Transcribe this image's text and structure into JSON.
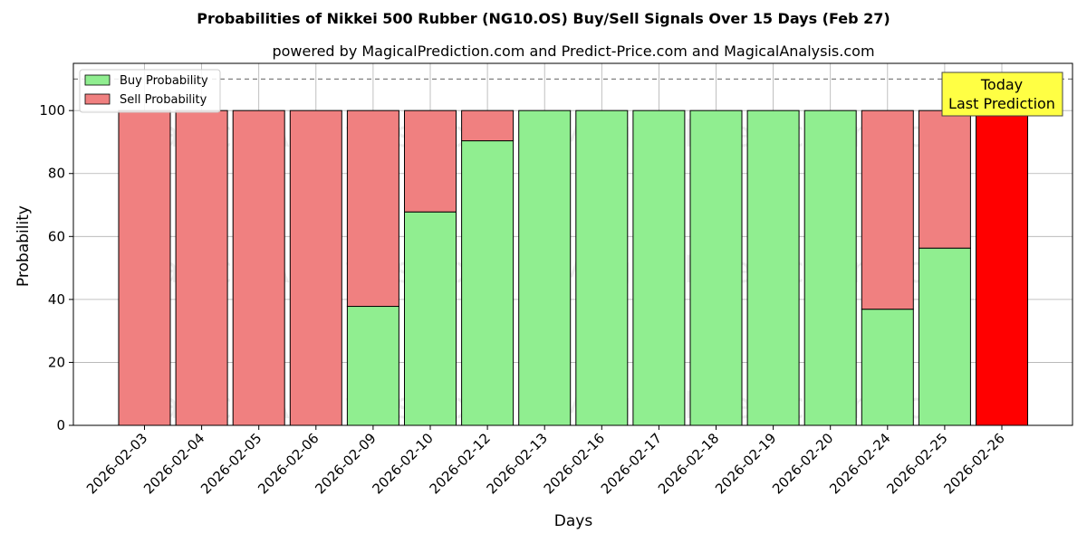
{
  "chart_data": {
    "type": "bar",
    "stacked": true,
    "title": "Probabilities of Nikkei 500 Rubber (NG10.OS) Buy/Sell Signals Over 15 Days (Feb 27)",
    "subtitle": "powered by MagicalPrediction.com and Predict-Price.com and MagicalAnalysis.com",
    "xlabel": "Days",
    "ylabel": "Probability",
    "ylim": [
      0,
      115
    ],
    "yticks": [
      0,
      20,
      40,
      60,
      80,
      100
    ],
    "grid": true,
    "legend_placement": "top-left",
    "reference_line": 110,
    "categories": [
      "2026-02-03",
      "2026-02-04",
      "2026-02-05",
      "2026-02-06",
      "2026-02-09",
      "2026-02-10",
      "2026-02-12",
      "2026-02-13",
      "2026-02-16",
      "2026-02-17",
      "2026-02-18",
      "2026-02-19",
      "2026-02-20",
      "2026-02-24",
      "2026-02-25",
      "2026-02-26"
    ],
    "series": [
      {
        "name": "Buy Probability",
        "color": "#90ee90",
        "values": [
          0,
          0,
          0,
          0,
          37.8,
          67.8,
          90.4,
          100,
          100,
          100,
          100,
          100,
          100,
          36.9,
          56.3,
          0
        ]
      },
      {
        "name": "Sell Probability",
        "color": "#f08080",
        "values": [
          100,
          100,
          100,
          100,
          62.2,
          32.2,
          9.6,
          0,
          0,
          0,
          0,
          0,
          0,
          63.1,
          43.7,
          100
        ]
      }
    ],
    "highlight": {
      "category": "2026-02-26",
      "color": "#ff0000"
    },
    "annotation": {
      "lines": [
        "Today",
        "Last Prediction"
      ],
      "box_color": "#ffff44"
    },
    "watermarks": [
      "MagicalAnalysis.com",
      "MagicalPrediction.com"
    ]
  }
}
